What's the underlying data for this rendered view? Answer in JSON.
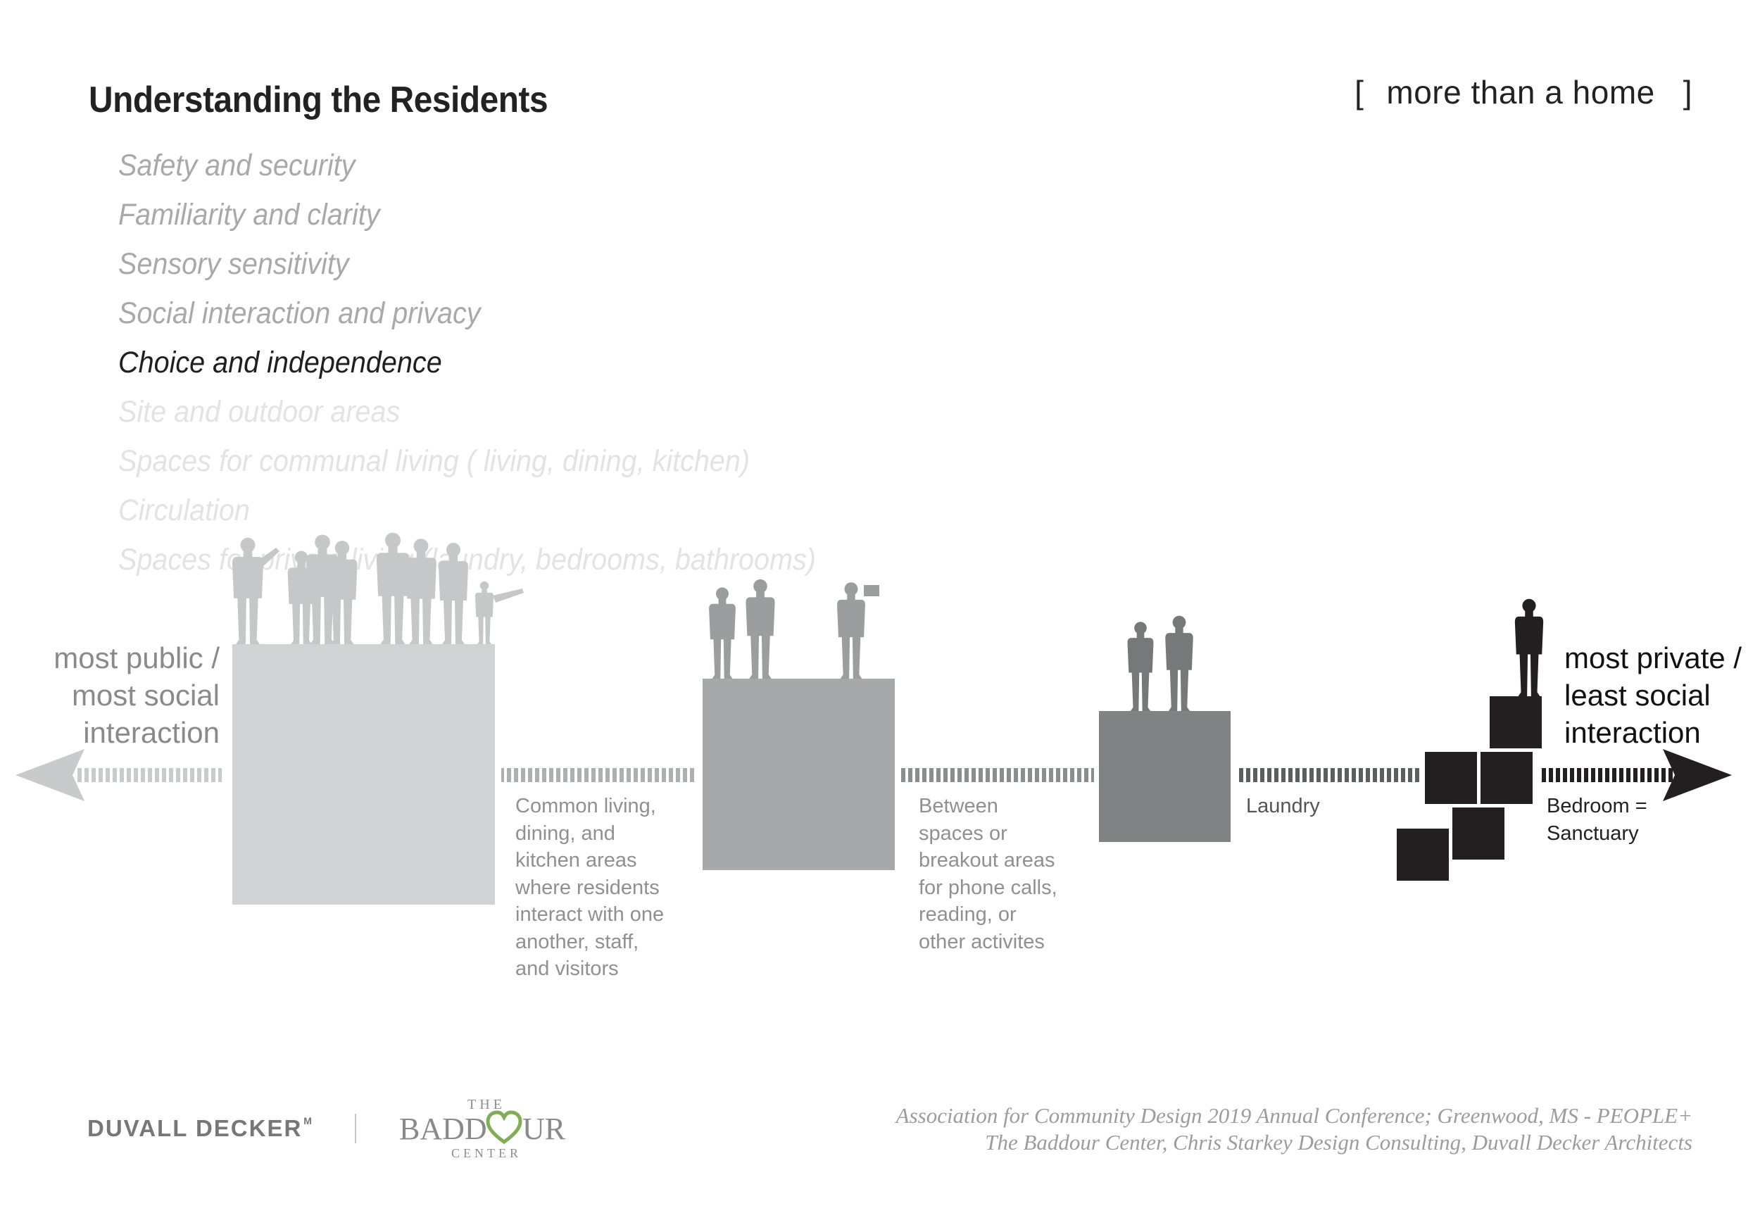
{
  "header": {
    "title": "Understanding the Residents",
    "tagline_open": "[",
    "tagline_text": "more than a home",
    "tagline_close": "]"
  },
  "topics": [
    {
      "label": "Safety and security",
      "color": "#a9a9a9"
    },
    {
      "label": "Familiarity and clarity",
      "color": "#a9a9a9"
    },
    {
      "label": "Sensory sensitivity",
      "color": "#a9a9a9"
    },
    {
      "label": "Social interaction and privacy",
      "color": "#a9a9a9"
    },
    {
      "label": "Choice and independence",
      "color": "#1f1f1f"
    },
    {
      "label": "Site and outdoor areas",
      "color": "#e3e3e3"
    },
    {
      "label": "Spaces for communal living ( living, dining, kitchen)",
      "color": "#e3e3e3"
    },
    {
      "label": "Circulation",
      "color": "#e3e3e3"
    },
    {
      "label": "Spaces for private living (laundry, bedrooms, bathrooms)",
      "color": "#e3e3e3"
    }
  ],
  "diagram": {
    "left_label": "most public /\nmost social\ninteraction",
    "right_label": "most private /\nleast social\ninteraction",
    "colors": {
      "lightest": "#d1d2d3",
      "light": "#a7a8aa",
      "mid": "#818284",
      "dark": "#231f20"
    },
    "zones": [
      {
        "id": "common",
        "caption": "Common living,\ndining, and\nkitchen areas\nwhere residents\ninteract with one\nanother, staff,\nand visitors"
      },
      {
        "id": "between",
        "caption": "Between\nspaces or\nbreakout areas\nfor phone calls,\nreading, or\nother activites"
      },
      {
        "id": "laundry",
        "caption": "Laundry"
      },
      {
        "id": "bedroom",
        "caption": "Bedroom =\nSanctuary"
      }
    ]
  },
  "footer": {
    "logo_duvall": "DUVALL DECKER",
    "logo_duvall_mark": "M",
    "logo_baddour_top": "THE",
    "logo_baddour_left": "BADD",
    "logo_baddour_right": "UR",
    "logo_baddour_bottom": "CENTER",
    "credits_line1": "Association for Community Design 2019 Annual Conference; Greenwood, MS - PEOPLE+",
    "credits_line2": "The Baddour Center, Chris Starkey Design Consulting, Duvall Decker Architects"
  }
}
